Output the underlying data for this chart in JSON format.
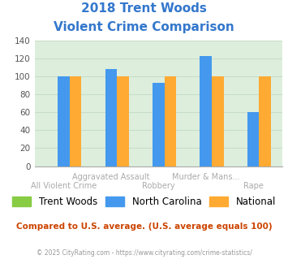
{
  "title_line1": "2018 Trent Woods",
  "title_line2": "Violent Crime Comparison",
  "title_color": "#3377cc",
  "groups": [
    {
      "trent_woods": 0,
      "nc": 100,
      "national": 100
    },
    {
      "trent_woods": 0,
      "nc": 108,
      "national": 100
    },
    {
      "trent_woods": 0,
      "nc": 93,
      "national": 100
    },
    {
      "trent_woods": 0,
      "nc": 122,
      "national": 100
    },
    {
      "trent_woods": 0,
      "nc": 60,
      "national": 100
    }
  ],
  "top_labels": [
    "",
    "Aggravated Assault",
    "",
    "Murder & Mans...",
    ""
  ],
  "bot_labels": [
    "All Violent Crime",
    "",
    "Robbery",
    "",
    "Rape"
  ],
  "label_color": "#aaaaaa",
  "colors": {
    "trent_woods": "#88cc44",
    "nc": "#4499ee",
    "national": "#ffaa33"
  },
  "ylim": [
    0,
    140
  ],
  "yticks": [
    0,
    20,
    40,
    60,
    80,
    100,
    120,
    140
  ],
  "grid_color": "#c8ddc8",
  "bg_color": "#ddeedd",
  "legend_items": [
    "Trent Woods",
    "North Carolina",
    "National"
  ],
  "footnote1": "Compared to U.S. average. (U.S. average equals 100)",
  "footnote2": "© 2025 CityRating.com - https://www.cityrating.com/crime-statistics/",
  "footnote1_color": "#cc4400",
  "footnote2_color": "#999999"
}
